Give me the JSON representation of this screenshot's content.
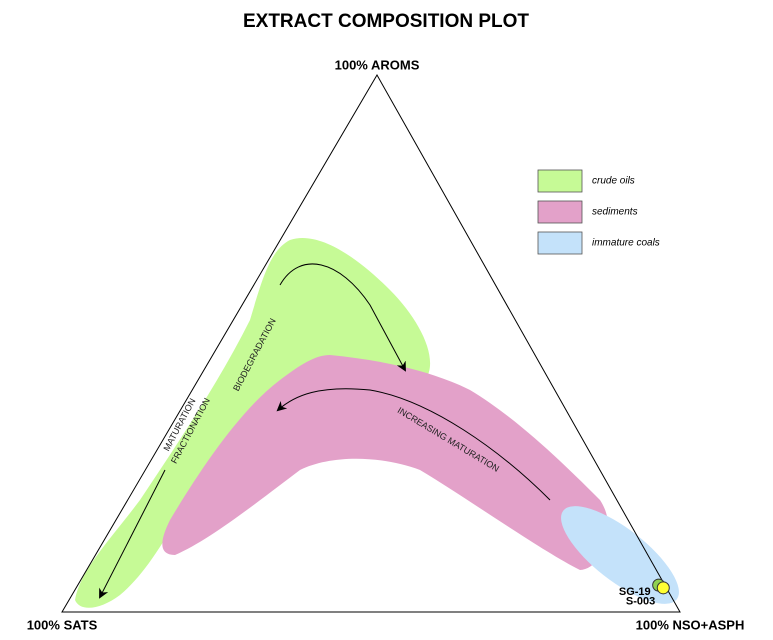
{
  "chart_data": {
    "type": "ternary",
    "title": "EXTRACT COMPOSITION PLOT",
    "vertices": [
      "100% SATS",
      "100% NSO+ASPH",
      "100% AROMS"
    ],
    "fields": [
      {
        "name": "crude oils",
        "color": "#c6fa96"
      },
      {
        "name": "sediments",
        "color": "#e3a1c9"
      },
      {
        "name": "immature coals",
        "color": "#c4e2fa"
      }
    ],
    "annotations": [
      "BIODEGRADATION",
      "MATURATION",
      "FRACTIONATION",
      "INCREASING MATURATION"
    ],
    "series": [
      {
        "name": "SG-19",
        "color": "#8fd14f",
        "values": [
          1,
          5,
          94
        ]
      },
      {
        "name": "S-003",
        "color": "#ffff33",
        "values": [
          0.5,
          4.5,
          95
        ]
      }
    ]
  }
}
